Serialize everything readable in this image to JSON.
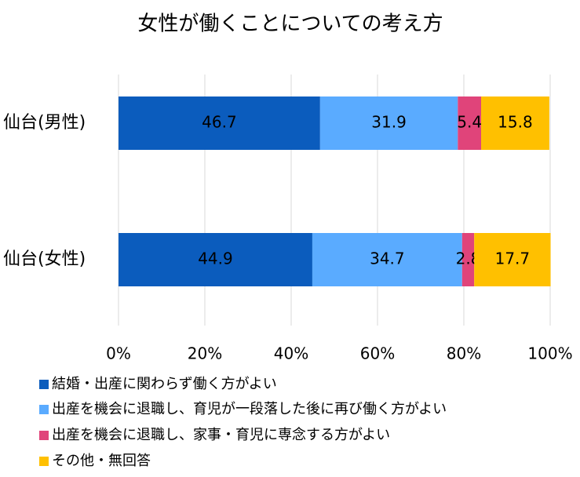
{
  "chart_data": {
    "type": "stacked-barh",
    "title": "女性が働くことについての考え方",
    "categories": [
      "仙台(男性)",
      "仙台(女性)"
    ],
    "series": [
      {
        "name": "結婚・出産に関わらず働く方がよい",
        "color": "#0b5cbd",
        "values": [
          46.7,
          44.9
        ]
      },
      {
        "name": "出産を機会に退職し、育児が一段落した後に再び働く方がよい",
        "color": "#5aabff",
        "values": [
          31.9,
          34.7
        ]
      },
      {
        "name": "出産を機会に退職し、家事・育児に専念する方がよい",
        "color": "#e0447a",
        "values": [
          5.4,
          2.8
        ]
      },
      {
        "name": "その他・無回答",
        "color": "#ffc000",
        "values": [
          15.8,
          17.7
        ]
      }
    ],
    "xlim": [
      0,
      100
    ],
    "xticks": [
      {
        "value": 0,
        "label": "0%"
      },
      {
        "value": 20,
        "label": "20%"
      },
      {
        "value": 40,
        "label": "40%"
      },
      {
        "value": 60,
        "label": "60%"
      },
      {
        "value": 80,
        "label": "80%"
      },
      {
        "value": 100,
        "label": "100%"
      }
    ],
    "grid": true
  }
}
